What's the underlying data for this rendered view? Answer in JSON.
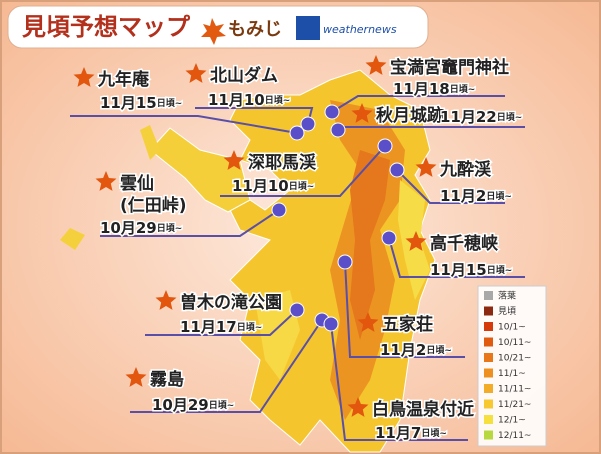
{
  "header": {
    "title": "見頃予想マップ",
    "subtitle": "もみじ",
    "brand": "weathernews"
  },
  "spots": [
    {
      "name": "九年庵",
      "date": "11月15",
      "suffix": "日頃~"
    },
    {
      "name": "北山ダム",
      "date": "11月10",
      "suffix": "日頃~"
    },
    {
      "name": "宝満宮竈門神社",
      "date": "11月18",
      "suffix": "日頃~"
    },
    {
      "name": "秋月城跡",
      "date": "11月22",
      "suffix": "日頃~"
    },
    {
      "name": "九酔渓",
      "date": "11月2",
      "suffix": "日頃~"
    },
    {
      "name": "深耶馬渓",
      "date": "11月10",
      "suffix": "日頃~"
    },
    {
      "name": "雲仙",
      "note": "(仁田峠)",
      "date": "10月29",
      "suffix": "日頃~"
    },
    {
      "name": "高千穂峡",
      "date": "11月15",
      "suffix": "日頃~"
    },
    {
      "name": "曽木の滝公園",
      "date": "11月17",
      "suffix": "日頃~"
    },
    {
      "name": "五家荘",
      "date": "11月2",
      "suffix": "日頃~"
    },
    {
      "name": "霧島",
      "date": "10月29",
      "suffix": "日頃~"
    },
    {
      "name": "白鳥温泉付近",
      "date": "11月7",
      "suffix": "日頃~"
    }
  ],
  "legend": [
    {
      "label": "落葉",
      "color": "#a8a8a8"
    },
    {
      "label": "見頃",
      "color": "#8b2a10"
    },
    {
      "label": "10/1~",
      "color": "#d43a0a"
    },
    {
      "label": "10/11~",
      "color": "#e05a10"
    },
    {
      "label": "10/21~",
      "color": "#e8771a"
    },
    {
      "label": "11/1~",
      "color": "#ee9020"
    },
    {
      "label": "11/11~",
      "color": "#f3ac28"
    },
    {
      "label": "11/21~",
      "color": "#f7c830"
    },
    {
      "label": "12/1~",
      "color": "#f6e040"
    },
    {
      "label": "12/11~",
      "color": "#b8d840"
    }
  ]
}
